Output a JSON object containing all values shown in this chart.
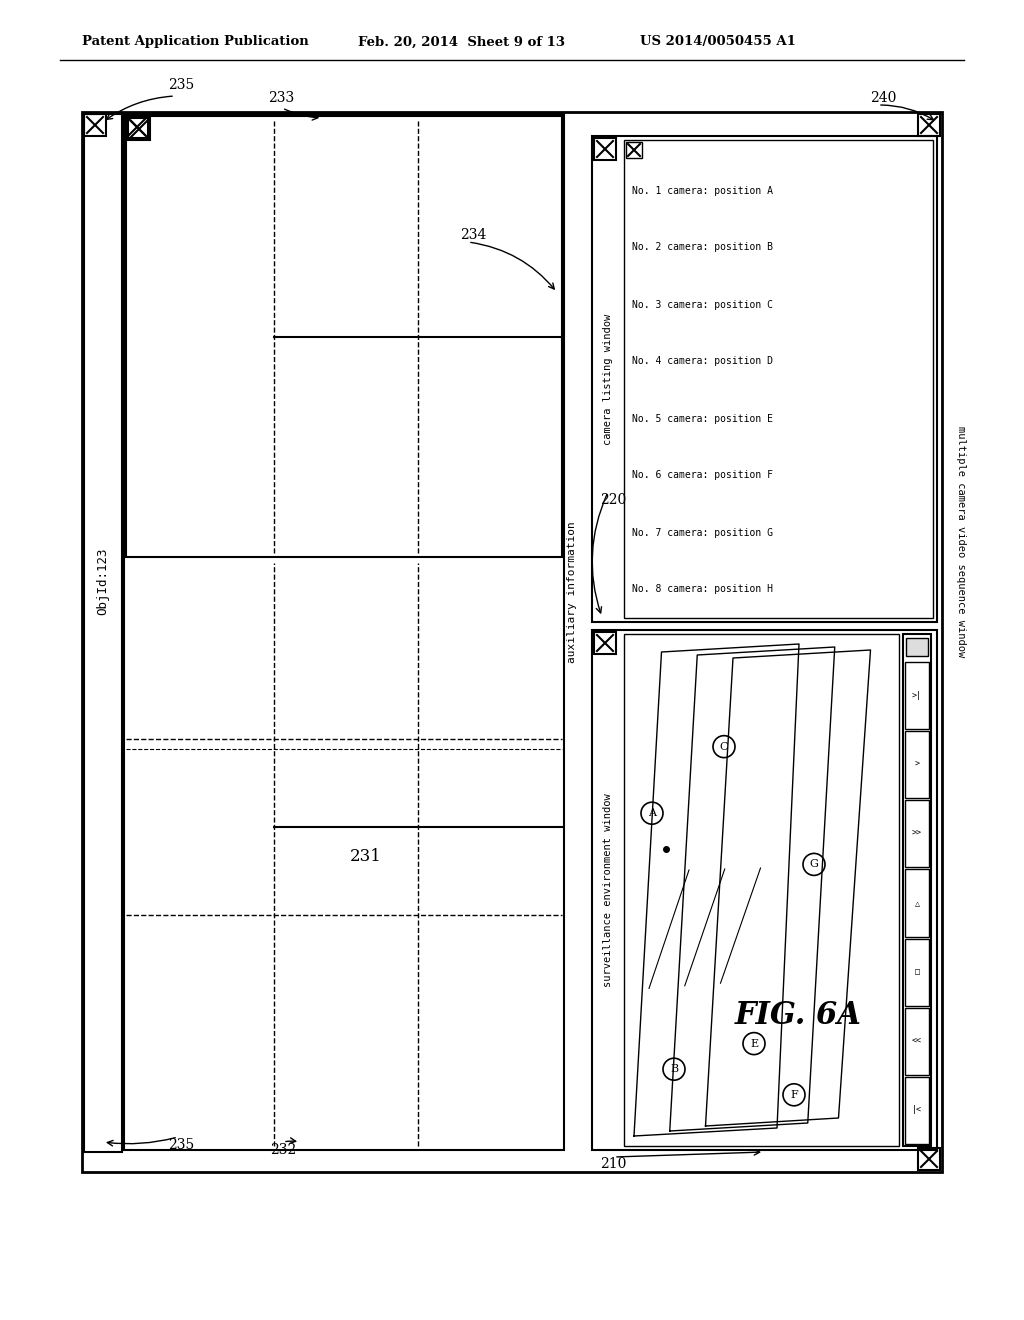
{
  "bg_color": "#ffffff",
  "header_left": "Patent Application Publication",
  "header_mid": "Feb. 20, 2014  Sheet 9 of 13",
  "header_right": "US 2014/0050455 A1",
  "fig_label": "FIG. 6A",
  "label_240": "240",
  "label_235_top": "235",
  "label_233": "233",
  "label_234": "234",
  "label_220": "220",
  "label_235_bot": "235",
  "label_232": "232",
  "label_231": "231",
  "label_objid": "ObjId:123",
  "label_210": "210",
  "camera_listing": [
    "No. 1 camera: position A",
    "No. 2 camera: position B",
    "No. 3 camera: position C",
    "No. 4 camera: position D",
    "No. 5 camera: position E",
    "No. 6 camera: position F",
    "No. 7 camera: position G",
    "No. 8 camera: position H"
  ],
  "camera_listing_title": "camera listing window",
  "surv_env_title": "surveillance environment window",
  "aux_info_label": "auxiliary information",
  "mult_cam_label": "multiple camera video sequence window"
}
